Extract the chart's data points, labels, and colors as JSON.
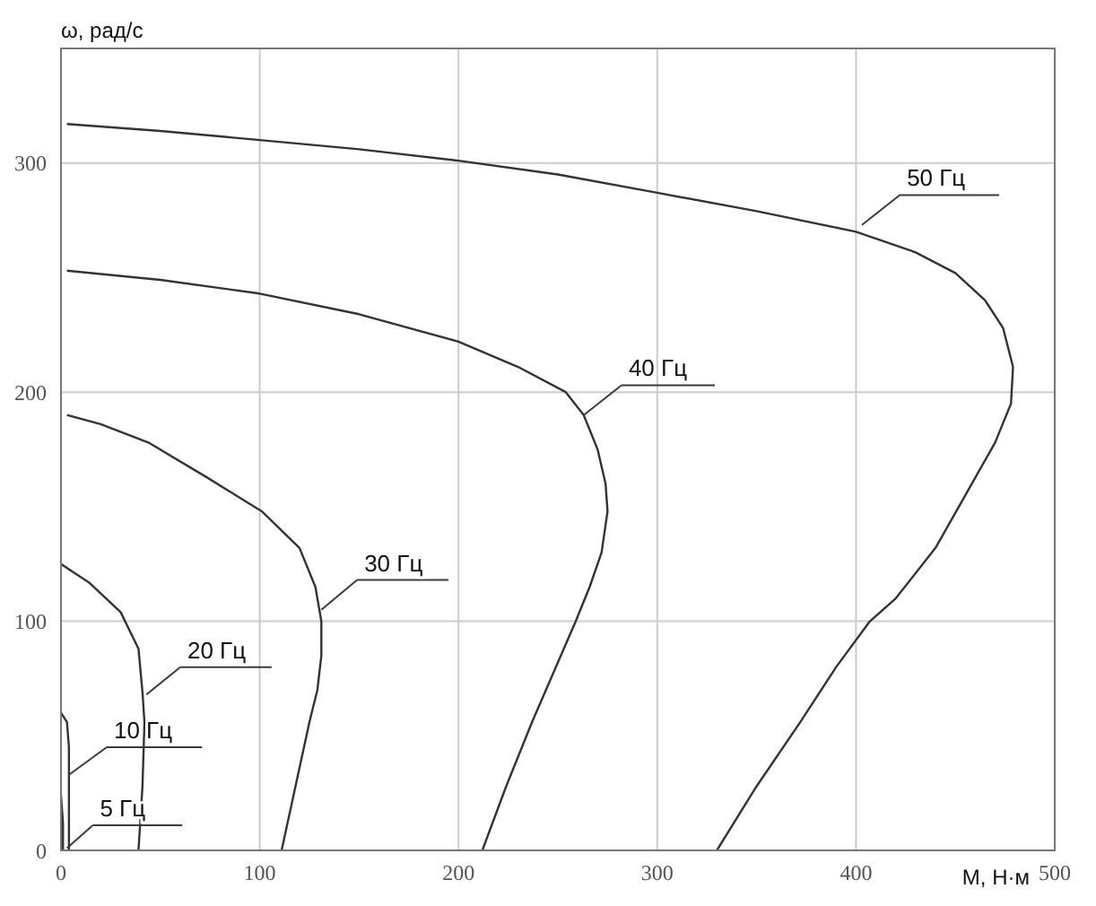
{
  "chart_data": {
    "type": "line",
    "xlabel": "M, Н·м",
    "ylabel": "ω, рад/с",
    "xlim": [
      0,
      500
    ],
    "ylim": [
      0,
      350
    ],
    "xticks": [
      0,
      100,
      200,
      300,
      400,
      500
    ],
    "yticks": [
      0,
      100,
      200,
      300
    ],
    "grid": true,
    "marker": "none",
    "line_style": "solid",
    "series": [
      {
        "name": "50 Гц",
        "color": "#333333",
        "x": [
          3,
          50,
          100,
          150,
          200,
          250,
          300,
          350,
          400,
          430,
          450,
          465,
          474,
          479,
          478,
          470,
          455,
          440,
          420,
          407,
          390,
          372,
          350,
          330
        ],
        "values": [
          317,
          314,
          310,
          306,
          301,
          295,
          287,
          279,
          270,
          261,
          252,
          240,
          228,
          211,
          195,
          178,
          155,
          132,
          110,
          100,
          80,
          56,
          28,
          0
        ]
      },
      {
        "name": "40 Гц",
        "color": "#333333",
        "x": [
          3,
          50,
          100,
          150,
          200,
          230,
          254,
          263,
          270,
          274,
          275,
          272,
          266,
          259,
          248,
          237,
          224,
          212
        ],
        "values": [
          253,
          249,
          243,
          234,
          222,
          211,
          200,
          190,
          175,
          160,
          148,
          130,
          115,
          100,
          78,
          56,
          28,
          0
        ]
      },
      {
        "name": "30 Гц",
        "color": "#333333",
        "x": [
          3,
          20,
          44,
          73,
          101,
          120,
          128,
          131,
          131,
          129,
          125,
          118,
          111
        ],
        "values": [
          190,
          186,
          178,
          163,
          148,
          132,
          115,
          100,
          85,
          70,
          56,
          28,
          0
        ]
      },
      {
        "name": "20 Гц",
        "color": "#333333",
        "x": [
          0,
          14,
          30,
          39,
          41,
          42,
          41,
          39
        ],
        "values": [
          125,
          117,
          104,
          88,
          69,
          56,
          28,
          0
        ]
      },
      {
        "name": "10 Гц",
        "color": "#333333",
        "x": [
          0,
          3,
          4,
          4,
          4
        ],
        "values": [
          60,
          56,
          45,
          28,
          0
        ]
      },
      {
        "name": "5 Гц",
        "color": "#333333",
        "x": [
          0,
          1,
          1
        ],
        "values": [
          24,
          12,
          0
        ]
      }
    ]
  }
}
